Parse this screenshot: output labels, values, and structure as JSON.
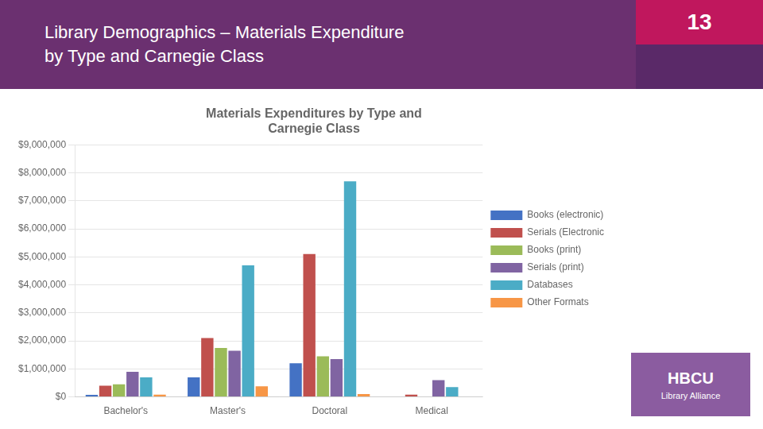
{
  "chart_data": {
    "type": "bar",
    "title": "Materials Expenditures by Type and\nCarnegie Class",
    "annotations": [
      "Library Demographics – Materials Expenditure\nby Type and Carnegie Class",
      "13",
      "HBCU",
      "Library Alliance"
    ],
    "categories": [
      "Bachelor's",
      "Master's",
      "Doctoral",
      "Medical"
    ],
    "series": [
      {
        "name": "Books (electronic)",
        "color": "#4472C4",
        "values": [
          75000,
          700000,
          1200000,
          20000
        ]
      },
      {
        "name": "Serials (Electronic",
        "color": "#C0504D",
        "values": [
          400000,
          2100000,
          5100000,
          80000
        ]
      },
      {
        "name": "Books (print)",
        "color": "#9BBB59",
        "values": [
          450000,
          1750000,
          1450000,
          0
        ]
      },
      {
        "name": "Serials (print)",
        "color": "#8064A2",
        "values": [
          900000,
          1650000,
          1350000,
          600000
        ]
      },
      {
        "name": "Databases",
        "color": "#4BACC6",
        "values": [
          700000,
          4700000,
          7700000,
          350000
        ]
      },
      {
        "name": "Other Formats",
        "color": "#F79646",
        "values": [
          80000,
          380000,
          100000,
          0
        ]
      }
    ],
    "ylim": [
      0,
      9000000
    ],
    "yticks": [
      {
        "value": 0,
        "label": "$0"
      },
      {
        "value": 1000000,
        "label": "$1,000,000"
      },
      {
        "value": 2000000,
        "label": "$2,000,000"
      },
      {
        "value": 3000000,
        "label": "$3,000,000"
      },
      {
        "value": 4000000,
        "label": "$4,000,000"
      },
      {
        "value": 5000000,
        "label": "$5,000,000"
      },
      {
        "value": 6000000,
        "label": "$6,000,000"
      },
      {
        "value": 7000000,
        "label": "$7,000,000"
      },
      {
        "value": 8000000,
        "label": "$8,000,000"
      },
      {
        "value": 9000000,
        "label": "$9,000,000"
      }
    ],
    "grid": "y",
    "legend": "right"
  }
}
